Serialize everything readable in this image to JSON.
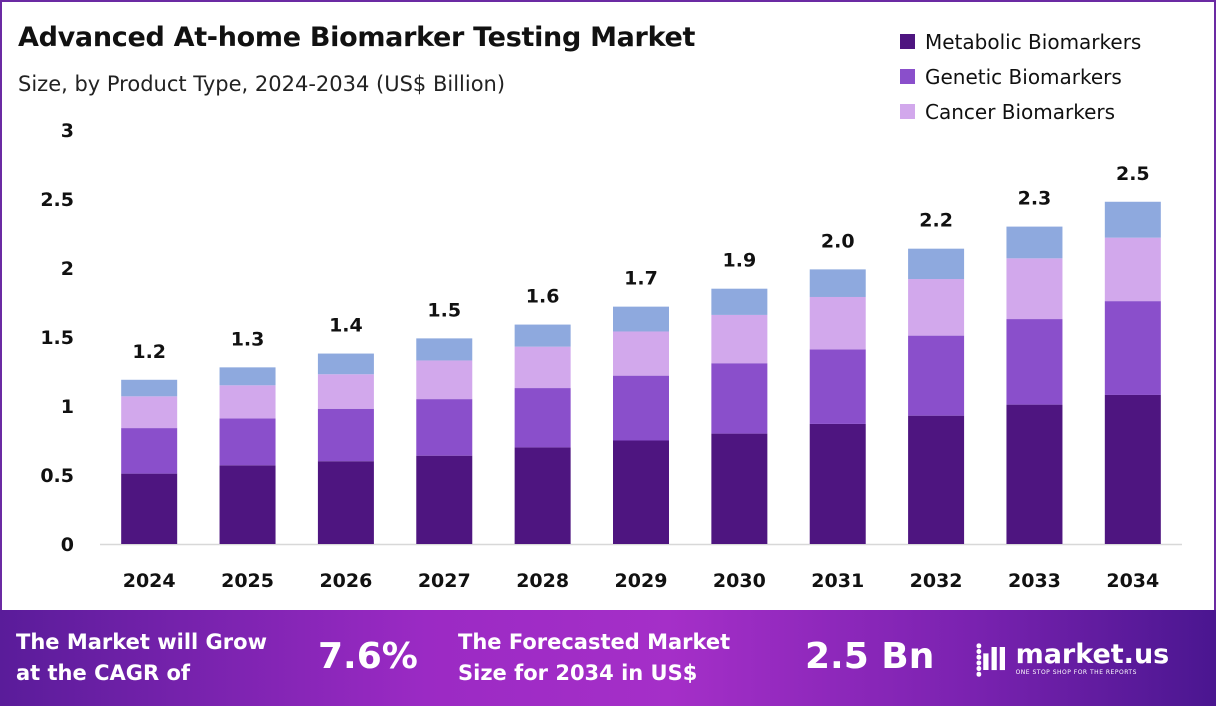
{
  "chart_data": {
    "type": "bar",
    "stacked": true,
    "title": "Advanced At-home Biomarker Testing Market",
    "subtitle": "Size, by Product Type, 2024-2034 (US$ Billion)",
    "categories": [
      "2024",
      "2025",
      "2026",
      "2027",
      "2028",
      "2029",
      "2030",
      "2031",
      "2032",
      "2033",
      "2034"
    ],
    "series": [
      {
        "name": "Metabolic Biomarkers",
        "color": "#4e1580",
        "values": [
          0.51,
          0.57,
          0.6,
          0.64,
          0.7,
          0.75,
          0.8,
          0.87,
          0.93,
          1.01,
          1.08
        ]
      },
      {
        "name": "Genetic Biomarkers",
        "color": "#8a4fcb",
        "values": [
          0.33,
          0.34,
          0.38,
          0.41,
          0.43,
          0.47,
          0.51,
          0.54,
          0.58,
          0.62,
          0.68
        ]
      },
      {
        "name": "Cancer Biomarkers",
        "color": "#d2a8ec",
        "values": [
          0.23,
          0.24,
          0.25,
          0.28,
          0.3,
          0.32,
          0.35,
          0.38,
          0.41,
          0.44,
          0.46
        ]
      },
      {
        "color": "#8ea9de",
        "values": [
          0.12,
          0.13,
          0.15,
          0.16,
          0.16,
          0.18,
          0.19,
          0.2,
          0.22,
          0.23,
          0.26
        ]
      }
    ],
    "totals_labels": [
      "1.2",
      "1.3",
      "1.4",
      "1.5",
      "1.6",
      "1.7",
      "1.9",
      "2.0",
      "2.2",
      "2.3",
      "2.5"
    ],
    "yticks": [
      "0",
      "0.5",
      "1",
      "1.5",
      "2",
      "2.5",
      "3"
    ],
    "ylim": [
      0,
      3
    ],
    "grid": false,
    "legend": "top-right",
    "xlabel": "",
    "ylabel": ""
  },
  "footer": {
    "cagr_text_1": "The Market will Grow",
    "cagr_text_2": "at the CAGR of",
    "cagr_value": "7.6%",
    "forecast_text_1": "The Forecasted Market",
    "forecast_text_2": "Size for 2034 in US$",
    "forecast_value": "2.5 Bn",
    "brand_name": "market.us",
    "brand_tagline": "ONE STOP SHOP FOR THE REPORTS"
  }
}
